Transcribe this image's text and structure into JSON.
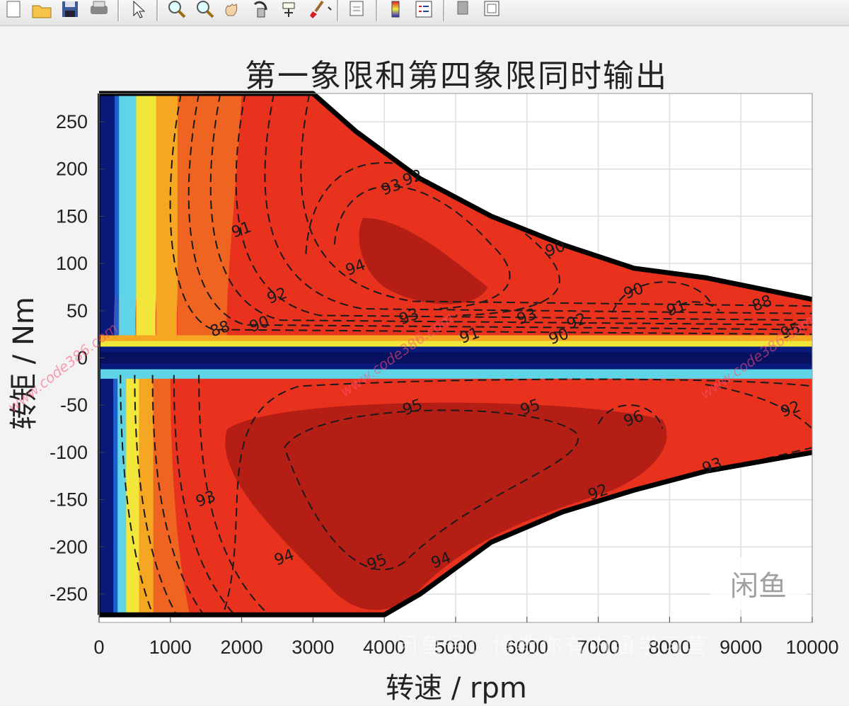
{
  "toolbar": {
    "buttons": [
      {
        "name": "new-figure-icon"
      },
      {
        "name": "open-file-icon"
      },
      {
        "name": "save-figure-icon"
      },
      {
        "name": "print-figure-icon"
      },
      {
        "sep": true
      },
      {
        "name": "edit-plot-arrow-icon"
      },
      {
        "sep": true
      },
      {
        "name": "zoom-in-icon"
      },
      {
        "name": "zoom-out-icon"
      },
      {
        "name": "pan-hand-icon"
      },
      {
        "name": "rotate-3d-icon"
      },
      {
        "name": "data-cursor-icon"
      },
      {
        "name": "brush-icon"
      },
      {
        "sep": true
      },
      {
        "name": "link-plot-icon"
      },
      {
        "sep": true
      },
      {
        "name": "insert-colorbar-icon"
      },
      {
        "name": "insert-legend-icon"
      },
      {
        "sep": true
      },
      {
        "name": "hide-plot-tools-icon"
      },
      {
        "name": "show-plot-tools-icon"
      }
    ]
  },
  "chart_data": {
    "type": "contour",
    "title": "第一象限和第四象限同时输出",
    "xlabel": "转速 / rpm",
    "ylabel": "转矩 / Nm",
    "xlim": [
      0,
      10000
    ],
    "ylim": [
      -280,
      280
    ],
    "xticks": [
      0,
      1000,
      2000,
      3000,
      4000,
      5000,
      6000,
      7000,
      8000,
      9000,
      10000
    ],
    "xtick_labels": [
      "0",
      "1000",
      "2000",
      "3000",
      "4000",
      "5000",
      "6000",
      "7000",
      "8000",
      "9000",
      "10000"
    ],
    "yticks": [
      250,
      200,
      150,
      100,
      50,
      0,
      -50,
      -100,
      -150,
      -200,
      -250
    ],
    "ytick_labels": [
      "250",
      "200",
      "150",
      "100",
      "50",
      "0",
      "-50",
      "-100",
      "-150",
      "-200",
      "-250"
    ],
    "grid": true,
    "envelope_upper": {
      "x": [
        0,
        3000,
        3600,
        4500,
        5500,
        6500,
        7500,
        8500,
        10000
      ],
      "y": [
        280,
        280,
        240,
        190,
        150,
        120,
        95,
        85,
        62
      ]
    },
    "envelope_lower": {
      "x": [
        0,
        4000,
        4500,
        5500,
        6500,
        7500,
        8500,
        10000
      ],
      "y": [
        -272,
        -272,
        -250,
        -195,
        -163,
        -140,
        -120,
        -100
      ]
    },
    "colors": {
      "peak": "#b51e14",
      "high": "#e8321e",
      "mid_high": "#f06422",
      "mid": "#f5a623",
      "yellow": "#f2e63a",
      "cyan": "#5fd4e6",
      "blue": "#1e5fd0",
      "dark_blue": "#0a1a7a"
    },
    "contour_labels": [
      {
        "text": "93",
        "x": 4100,
        "y": 180
      },
      {
        "text": "92",
        "x": 4400,
        "y": 190
      },
      {
        "text": "91",
        "x": 2000,
        "y": 135
      },
      {
        "text": "94",
        "x": 3600,
        "y": 95
      },
      {
        "text": "92",
        "x": 2500,
        "y": 65
      },
      {
        "text": "90",
        "x": 2250,
        "y": 35
      },
      {
        "text": "93",
        "x": 4350,
        "y": 43
      },
      {
        "text": "93",
        "x": 6000,
        "y": 43
      },
      {
        "text": "92",
        "x": 6700,
        "y": 38
      },
      {
        "text": "90",
        "x": 6450,
        "y": 22
      },
      {
        "text": "91",
        "x": 5200,
        "y": 23
      },
      {
        "text": "88",
        "x": 1700,
        "y": 30
      },
      {
        "text": "88",
        "x": 9300,
        "y": 57
      },
      {
        "text": "90",
        "x": 7500,
        "y": 70
      },
      {
        "text": "91",
        "x": 8100,
        "y": 52
      },
      {
        "text": "90",
        "x": 6400,
        "y": 115
      },
      {
        "text": "95",
        "x": 4400,
        "y": -53
      },
      {
        "text": "95",
        "x": 6050,
        "y": -53
      },
      {
        "text": "96",
        "x": 7500,
        "y": -65
      },
      {
        "text": "93",
        "x": 1500,
        "y": -150
      },
      {
        "text": "94",
        "x": 2600,
        "y": -212
      },
      {
        "text": "95",
        "x": 3900,
        "y": -217
      },
      {
        "text": "94",
        "x": 4800,
        "y": -215
      },
      {
        "text": "92",
        "x": 7000,
        "y": -143
      },
      {
        "text": "93",
        "x": 8600,
        "y": -115
      },
      {
        "text": "92",
        "x": 9700,
        "y": -55
      },
      {
        "text": "95",
        "x": 9700,
        "y": 28
      }
    ]
  },
  "watermark": {
    "url_text": "www.code386.com",
    "bottom_text": "闲鱼号：博教你有内涵学习营",
    "logo_text": "闲鱼"
  }
}
